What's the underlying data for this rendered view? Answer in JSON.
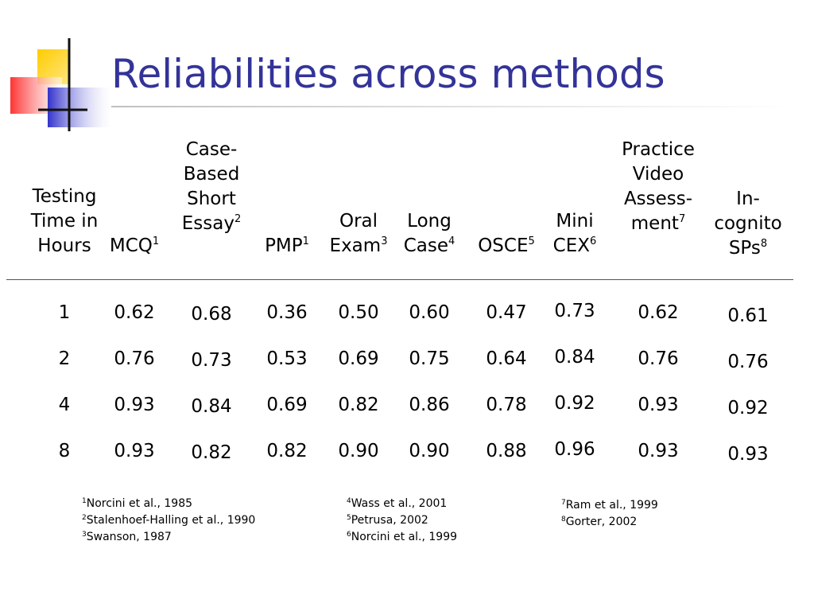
{
  "title": "Reliabilities across methods",
  "colors": {
    "title": "#333399",
    "deco_yellow": "#ffcc00",
    "deco_red": "#ff3333",
    "deco_blue": "#3333cc"
  },
  "table": {
    "columns": [
      {
        "id": "time",
        "header_lines": [
          "Testing",
          "Time in",
          "Hours"
        ],
        "sup": "",
        "values": [
          "1",
          "2",
          "4",
          "8"
        ]
      },
      {
        "id": "mcq",
        "header_lines": [
          "MCQ"
        ],
        "sup": "1",
        "values": [
          "0.62",
          "0.76",
          "0.93",
          "0.93"
        ]
      },
      {
        "id": "case-based",
        "header_lines": [
          "Case-",
          "Based",
          "Short",
          "Essay"
        ],
        "sup": "2",
        "values": [
          "0.68",
          "0.73",
          "0.84",
          "0.82"
        ]
      },
      {
        "id": "pmp",
        "header_lines": [
          "PMP"
        ],
        "sup": "1",
        "values": [
          "0.36",
          "0.53",
          "0.69",
          "0.82"
        ]
      },
      {
        "id": "oral-exam",
        "header_lines": [
          "Oral",
          "Exam"
        ],
        "sup": "3",
        "values": [
          "0.50",
          "0.69",
          "0.82",
          "0.90"
        ]
      },
      {
        "id": "long-case",
        "header_lines": [
          "Long",
          "Case"
        ],
        "sup": "4",
        "values": [
          "0.60",
          "0.75",
          "0.86",
          "0.90"
        ]
      },
      {
        "id": "osce",
        "header_lines": [
          "OSCE"
        ],
        "sup": "5",
        "values": [
          "0.47",
          "0.64",
          "0.78",
          "0.88"
        ]
      },
      {
        "id": "mini-cex",
        "header_lines": [
          "Mini",
          "CEX"
        ],
        "sup": "6",
        "values": [
          "0.73",
          "0.84",
          "0.92",
          "0.96"
        ]
      },
      {
        "id": "practice-video",
        "header_lines": [
          "Practice",
          "Video",
          "Assess-",
          "ment"
        ],
        "sup": "7",
        "values": [
          "0.62",
          "0.76",
          "0.93",
          "0.93"
        ]
      },
      {
        "id": "incognito",
        "header_lines": [
          "In-",
          "cognito",
          "SPs"
        ],
        "sup": "8",
        "values": [
          "0.61",
          "0.76",
          "0.92",
          "0.93"
        ]
      }
    ]
  },
  "references": [
    [
      {
        "num": "1",
        "text": "Norcini et al., 1985"
      },
      {
        "num": "2",
        "text": "Stalenhoef-Halling et al., 1990"
      },
      {
        "num": "3",
        "text": "Swanson, 1987"
      }
    ],
    [
      {
        "num": "4",
        "text": "Wass et al., 2001"
      },
      {
        "num": "5",
        "text": "Petrusa, 2002"
      },
      {
        "num": "6",
        "text": "Norcini et al., 1999"
      }
    ],
    [
      {
        "num": "7",
        "text": "Ram et al., 1999"
      },
      {
        "num": "8",
        "text": "Gorter, 2002"
      }
    ]
  ]
}
